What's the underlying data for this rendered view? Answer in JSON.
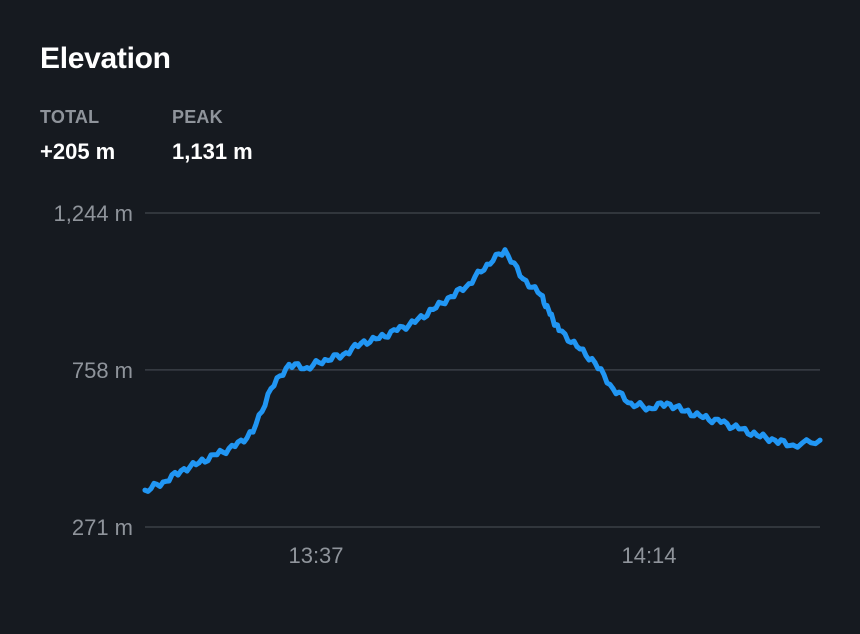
{
  "header": {
    "title": "Elevation"
  },
  "stats": [
    {
      "label": "TOTAL",
      "value": "+205 m"
    },
    {
      "label": "PEAK",
      "value": "1,131 m"
    }
  ],
  "colors": {
    "background": "#161a20",
    "line": "#2196f3",
    "grid": "#3a3f46",
    "muted_text": "#8f949b"
  },
  "chart_data": {
    "type": "line",
    "title": "",
    "xlabel": "",
    "ylabel": "",
    "ylim": [
      271,
      1244
    ],
    "y_ticks": [
      {
        "value": 1244,
        "label": "1,244 m"
      },
      {
        "value": 758,
        "label": "758 m"
      },
      {
        "value": 271,
        "label": "271 m"
      }
    ],
    "x_ticks": [
      {
        "value": "13:37",
        "label": "13:37"
      },
      {
        "value": "14:14",
        "label": "14:14"
      }
    ],
    "xlim": [
      "13:18",
      "14:33"
    ],
    "grid": true,
    "series": [
      {
        "x": [
          "13:18",
          "13:20",
          "13:22",
          "13:24",
          "13:26",
          "13:28",
          "13:30",
          "13:32",
          "13:34",
          "13:36",
          "13:38",
          "13:40",
          "13:42",
          "13:44",
          "13:46",
          "13:48",
          "13:50",
          "13:52",
          "13:54",
          "13:56",
          "13:58",
          "14:00",
          "14:02",
          "14:03",
          "14:04",
          "14:06",
          "14:08",
          "14:10",
          "14:12",
          "14:14",
          "14:16",
          "14:18",
          "14:20",
          "14:22",
          "14:24",
          "14:26",
          "14:28",
          "14:30",
          "14:33"
        ],
        "y": [
          385,
          410,
          445,
          470,
          495,
          520,
          565,
          700,
          775,
          765,
          790,
          805,
          840,
          855,
          880,
          905,
          945,
          985,
          1025,
          1085,
          1130,
          1040,
          990,
          930,
          880,
          830,
          780,
          700,
          655,
          640,
          655,
          630,
          610,
          595,
          575,
          555,
          540,
          525,
          540
        ]
      }
    ]
  }
}
